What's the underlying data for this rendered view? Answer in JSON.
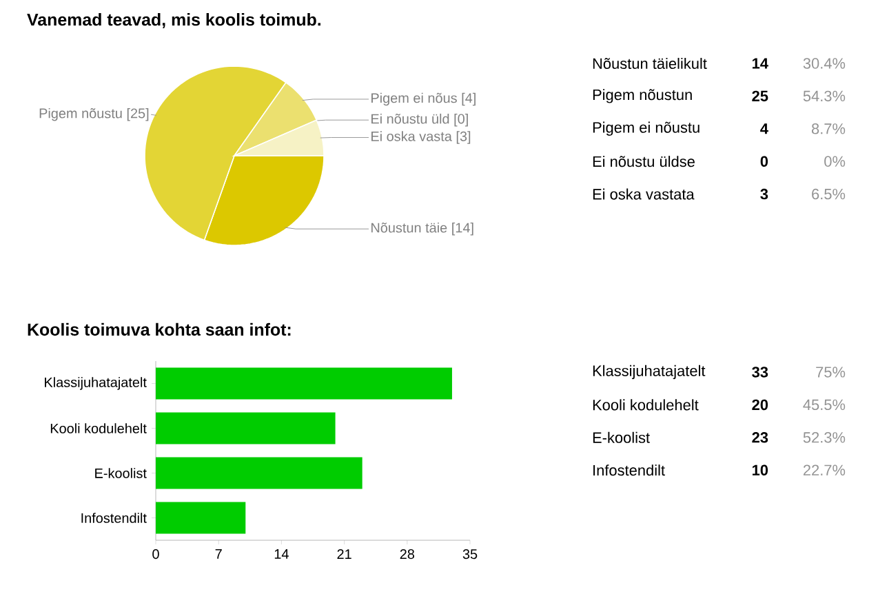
{
  "chart_data": [
    {
      "type": "pie",
      "title": "Vanemad teavad, mis koolis toimub.",
      "categories": [
        "Nõustun täie [14]",
        "Pigem nõustu [25]",
        "Pigem ei nõus [4]",
        "Ei nõustu üld [0]",
        "Ei oska vasta [3]"
      ],
      "values": [
        14,
        25,
        4,
        0,
        3
      ],
      "colors": [
        "#dcc800",
        "#e3d535",
        "#ebe06f",
        "#f0e996",
        "#f6f2c5"
      ]
    },
    {
      "type": "other",
      "categories": [
        "Nõustun täielikult",
        "Pigem nõustun",
        "Pigem ei nõustu",
        "Ei nõustu üldse",
        "Ei oska vastata"
      ],
      "values": [
        14,
        25,
        4,
        0,
        3
      ],
      "data_labels": true,
      "annotations": [
        "30.4%",
        "54.3%",
        "8.7%",
        "0%",
        "6.5%"
      ]
    },
    {
      "type": "bar",
      "orientation": "horizontal",
      "title": "Koolis toimuva kohta saan infot:",
      "categories": [
        "Klassijuhatajatelt",
        "Kooli kodulehelt",
        "E-koolist",
        "Infostendilt"
      ],
      "values": [
        33,
        20,
        23,
        10
      ],
      "color": "#00cc00",
      "xlim": [
        0,
        35
      ],
      "xticks": [
        0,
        7,
        14,
        21,
        28,
        35
      ]
    },
    {
      "type": "other",
      "categories": [
        "Klassijuhatajatelt",
        "Kooli kodulehelt",
        "E-koolist",
        "Infostendilt"
      ],
      "values": [
        33,
        20,
        23,
        10
      ],
      "data_labels": true,
      "annotations": [
        "75%",
        "45.5%",
        "52.3%",
        "22.7%"
      ]
    }
  ]
}
